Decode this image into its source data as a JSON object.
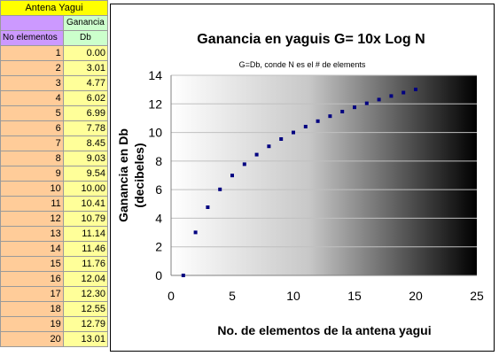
{
  "sheet": {
    "title": "Antena Yagui",
    "col1_header": "No elementos",
    "col2_header_top": "Ganancia",
    "col2_header_bottom": "Db",
    "rows": [
      {
        "n": "1",
        "db": "0.00"
      },
      {
        "n": "2",
        "db": "3.01"
      },
      {
        "n": "3",
        "db": "4.77"
      },
      {
        "n": "4",
        "db": "6.02"
      },
      {
        "n": "5",
        "db": "6.99"
      },
      {
        "n": "6",
        "db": "7.78"
      },
      {
        "n": "7",
        "db": "8.45"
      },
      {
        "n": "8",
        "db": "9.03"
      },
      {
        "n": "9",
        "db": "9.54"
      },
      {
        "n": "10",
        "db": "10.00"
      },
      {
        "n": "11",
        "db": "10.41"
      },
      {
        "n": "12",
        "db": "10.79"
      },
      {
        "n": "13",
        "db": "11.14"
      },
      {
        "n": "14",
        "db": "11.46"
      },
      {
        "n": "15",
        "db": "11.76"
      },
      {
        "n": "16",
        "db": "12.04"
      },
      {
        "n": "17",
        "db": "12.30"
      },
      {
        "n": "18",
        "db": "12.55"
      },
      {
        "n": "19",
        "db": "12.79"
      },
      {
        "n": "20",
        "db": "13.01"
      }
    ]
  },
  "colors": {
    "title_cell": "#ffff00",
    "header_purple": "#cc99ff",
    "header_green": "#ccffcc",
    "n_cells": "#ffcc99",
    "db_cells": "#ffff99",
    "points": "#000080",
    "gridline": "#c0c0c0"
  },
  "chart_data": {
    "type": "scatter",
    "title": "Ganancia en yaguis  G= 10x Log N",
    "subtitle": "G=Db,   conde N es el # de elements",
    "xlabel": "No. de elementos de la antena yagui",
    "ylabel_line1": "Ganancia en Db",
    "ylabel_line2": "(decibeles)",
    "xlim": [
      0,
      25
    ],
    "ylim": [
      0,
      14
    ],
    "xticks": [
      0,
      5,
      10,
      15,
      20,
      25
    ],
    "yticks": [
      0,
      2,
      4,
      6,
      8,
      10,
      12,
      14
    ],
    "grid": true,
    "background": "gradient white to black, left to right",
    "series": [
      {
        "x": [
          1,
          2,
          3,
          4,
          5,
          6,
          7,
          8,
          9,
          10,
          11,
          12,
          13,
          14,
          15,
          16,
          17,
          18,
          19,
          20
        ],
        "y": [
          0.0,
          3.01,
          4.77,
          6.02,
          6.99,
          7.78,
          8.45,
          9.03,
          9.54,
          10.0,
          10.41,
          10.79,
          11.14,
          11.46,
          11.76,
          12.04,
          12.3,
          12.55,
          12.79,
          13.01
        ]
      }
    ]
  }
}
